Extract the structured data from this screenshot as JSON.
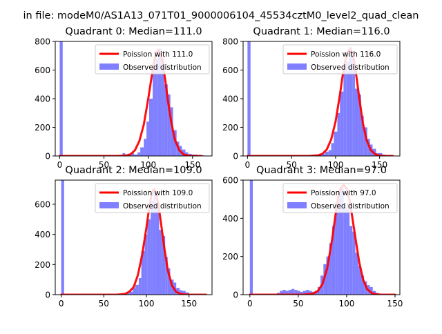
{
  "suptitle": "in file: modeM0/AS1A13_071T01_9000006104_45534cztM0_level2_quad_clean",
  "colors": {
    "hist": "#7f7fff",
    "fit": "#ff0000",
    "axis": "#000000"
  },
  "chart_data": [
    {
      "type": "bar",
      "title": "Quadrant 0: Median=111.0",
      "xlim": [
        -5,
        172
      ],
      "ylim": [
        0,
        800
      ],
      "xticks": [
        0,
        50,
        100,
        150
      ],
      "xtick_labels": [
        "0",
        "50",
        "100",
        "150"
      ],
      "yticks": [
        0,
        200,
        400,
        600,
        800
      ],
      "ytick_labels": [
        "0",
        "200",
        "400",
        "600",
        "800"
      ],
      "legend": {
        "placement": "top-right",
        "entries": [
          "Poission with 111.0",
          "Observed distribution"
        ]
      },
      "poisson_mean": 111.0,
      "bins": [
        {
          "x0": 0,
          "x1": 3.4,
          "y": 800
        },
        {
          "x0": 3.4,
          "x1": 71,
          "y": 5
        },
        {
          "x0": 71,
          "x1": 74,
          "y": 20
        },
        {
          "x0": 74,
          "x1": 77,
          "y": 5
        },
        {
          "x0": 77,
          "x1": 81,
          "y": 5
        },
        {
          "x0": 81,
          "x1": 84,
          "y": 20
        },
        {
          "x0": 84,
          "x1": 88,
          "y": 10
        },
        {
          "x0": 88,
          "x1": 91,
          "y": 25
        },
        {
          "x0": 91,
          "x1": 95,
          "y": 60
        },
        {
          "x0": 95,
          "x1": 98,
          "y": 120
        },
        {
          "x0": 98,
          "x1": 101,
          "y": 240
        },
        {
          "x0": 101,
          "x1": 105,
          "y": 400
        },
        {
          "x0": 105,
          "x1": 108,
          "y": 620
        },
        {
          "x0": 108,
          "x1": 111,
          "y": 680
        },
        {
          "x0": 111,
          "x1": 115,
          "y": 750
        },
        {
          "x0": 115,
          "x1": 118,
          "y": 690
        },
        {
          "x0": 118,
          "x1": 122,
          "y": 500
        },
        {
          "x0": 122,
          "x1": 125,
          "y": 430
        },
        {
          "x0": 125,
          "x1": 128,
          "y": 340
        },
        {
          "x0": 128,
          "x1": 132,
          "y": 180
        },
        {
          "x0": 132,
          "x1": 135,
          "y": 100
        },
        {
          "x0": 135,
          "x1": 138,
          "y": 70
        },
        {
          "x0": 138,
          "x1": 142,
          "y": 45
        },
        {
          "x0": 142,
          "x1": 145,
          "y": 25
        },
        {
          "x0": 145,
          "x1": 149,
          "y": 15
        },
        {
          "x0": 149,
          "x1": 152,
          "y": 10
        },
        {
          "x0": 152,
          "x1": 155,
          "y": 10
        },
        {
          "x0": 155,
          "x1": 159,
          "y": 5
        },
        {
          "x0": 159,
          "x1": 163,
          "y": 5
        }
      ],
      "curve": {
        "x": [
          0,
          65,
          75,
          80,
          85,
          90,
          95,
          100,
          103,
          106,
          109,
          111,
          113,
          116,
          119,
          122,
          126,
          130,
          135,
          140,
          145,
          150,
          160
        ],
        "y": [
          0,
          0,
          3,
          12,
          40,
          105,
          220,
          400,
          520,
          640,
          720,
          740,
          725,
          660,
          540,
          395,
          235,
          115,
          40,
          10,
          3,
          0,
          0
        ]
      }
    },
    {
      "type": "bar",
      "title": "Quadrant 1: Median=116.0",
      "xlim": [
        -5,
        173
      ],
      "ylim": [
        0,
        800
      ],
      "xticks": [
        0,
        50,
        100,
        150
      ],
      "xtick_labels": [
        "0",
        "50",
        "100",
        "150"
      ],
      "yticks": [
        0,
        200,
        400,
        600,
        800
      ],
      "ytick_labels": [
        "0",
        "200",
        "400",
        "600",
        "800"
      ],
      "legend": {
        "placement": "top-right",
        "entries": [
          "Poission with 116.0",
          "Observed distribution"
        ]
      },
      "poisson_mean": 116.0,
      "bins": [
        {
          "x0": 0,
          "x1": 3.4,
          "y": 800
        },
        {
          "x0": 3.4,
          "x1": 73,
          "y": 5
        },
        {
          "x0": 73,
          "x1": 80,
          "y": 5
        },
        {
          "x0": 80,
          "x1": 84,
          "y": 10
        },
        {
          "x0": 84,
          "x1": 88,
          "y": 15
        },
        {
          "x0": 88,
          "x1": 92,
          "y": 30
        },
        {
          "x0": 92,
          "x1": 95,
          "y": 40
        },
        {
          "x0": 95,
          "x1": 98,
          "y": 90
        },
        {
          "x0": 98,
          "x1": 102,
          "y": 170
        },
        {
          "x0": 102,
          "x1": 105,
          "y": 300
        },
        {
          "x0": 105,
          "x1": 109,
          "y": 450
        },
        {
          "x0": 109,
          "x1": 112,
          "y": 620
        },
        {
          "x0": 112,
          "x1": 115,
          "y": 660
        },
        {
          "x0": 115,
          "x1": 119,
          "y": 760
        },
        {
          "x0": 119,
          "x1": 122,
          "y": 680
        },
        {
          "x0": 122,
          "x1": 126,
          "y": 470
        },
        {
          "x0": 126,
          "x1": 129,
          "y": 430
        },
        {
          "x0": 129,
          "x1": 132,
          "y": 280
        },
        {
          "x0": 132,
          "x1": 136,
          "y": 200
        },
        {
          "x0": 136,
          "x1": 139,
          "y": 120
        },
        {
          "x0": 139,
          "x1": 142,
          "y": 80
        },
        {
          "x0": 142,
          "x1": 146,
          "y": 50
        },
        {
          "x0": 146,
          "x1": 149,
          "y": 20
        },
        {
          "x0": 149,
          "x1": 153,
          "y": 20
        },
        {
          "x0": 153,
          "x1": 156,
          "y": 10
        },
        {
          "x0": 156,
          "x1": 160,
          "y": 5
        },
        {
          "x0": 160,
          "x1": 163,
          "y": 5
        }
      ],
      "curve": {
        "x": [
          0,
          70,
          80,
          85,
          90,
          95,
          100,
          105,
          108,
          111,
          114,
          116,
          118,
          121,
          124,
          127,
          131,
          135,
          140,
          145,
          150,
          155,
          165
        ],
        "y": [
          0,
          0,
          4,
          15,
          45,
          115,
          240,
          430,
          560,
          665,
          730,
          745,
          730,
          665,
          540,
          400,
          230,
          115,
          40,
          12,
          3,
          0,
          0
        ]
      }
    },
    {
      "type": "bar",
      "title": "Quadrant 2: Median=109.0",
      "xlim": [
        -7,
        177
      ],
      "ylim": [
        0,
        760
      ],
      "xticks": [
        0,
        50,
        100,
        150
      ],
      "xtick_labels": [
        "0",
        "50",
        "100",
        "150"
      ],
      "yticks": [
        0,
        200,
        400,
        600
      ],
      "ytick_labels": [
        "0",
        "200",
        "400",
        "600"
      ],
      "legend": {
        "placement": "top-right",
        "entries": [
          "Poission with 109.0",
          "Observed distribution"
        ]
      },
      "poisson_mean": 109.0,
      "bins": [
        {
          "x0": 0,
          "x1": 3.4,
          "y": 760
        },
        {
          "x0": 3.4,
          "x1": 77,
          "y": 5
        },
        {
          "x0": 77,
          "x1": 80,
          "y": 10
        },
        {
          "x0": 80,
          "x1": 84,
          "y": 20
        },
        {
          "x0": 84,
          "x1": 87,
          "y": 45
        },
        {
          "x0": 87,
          "x1": 91,
          "y": 65
        },
        {
          "x0": 91,
          "x1": 94,
          "y": 110
        },
        {
          "x0": 94,
          "x1": 98,
          "y": 290
        },
        {
          "x0": 98,
          "x1": 101,
          "y": 400
        },
        {
          "x0": 101,
          "x1": 105,
          "y": 500
        },
        {
          "x0": 105,
          "x1": 108,
          "y": 620
        },
        {
          "x0": 108,
          "x1": 111,
          "y": 700
        },
        {
          "x0": 111,
          "x1": 115,
          "y": 570
        },
        {
          "x0": 115,
          "x1": 118,
          "y": 430
        },
        {
          "x0": 118,
          "x1": 122,
          "y": 390
        },
        {
          "x0": 122,
          "x1": 125,
          "y": 250
        },
        {
          "x0": 125,
          "x1": 128,
          "y": 175
        },
        {
          "x0": 128,
          "x1": 132,
          "y": 100
        },
        {
          "x0": 132,
          "x1": 135,
          "y": 80
        },
        {
          "x0": 135,
          "x1": 139,
          "y": 45
        },
        {
          "x0": 139,
          "x1": 142,
          "y": 30
        },
        {
          "x0": 142,
          "x1": 146,
          "y": 25
        },
        {
          "x0": 146,
          "x1": 150,
          "y": 15
        },
        {
          "x0": 150,
          "x1": 160,
          "y": 5
        }
      ],
      "curve": {
        "x": [
          0,
          65,
          75,
          80,
          85,
          90,
          95,
          100,
          103,
          106,
          108,
          109,
          111,
          114,
          117,
          121,
          125,
          130,
          135,
          140,
          145,
          150,
          170
        ],
        "y": [
          0,
          0,
          5,
          20,
          50,
          130,
          265,
          445,
          565,
          665,
          695,
          700,
          680,
          600,
          480,
          310,
          165,
          60,
          18,
          5,
          2,
          0,
          0
        ]
      }
    },
    {
      "type": "bar",
      "title": "Quadrant 3: Median=97.0",
      "xlim": [
        -7,
        155
      ],
      "ylim": [
        0,
        600
      ],
      "xticks": [
        0,
        50,
        100,
        150
      ],
      "xtick_labels": [
        "0",
        "50",
        "100",
        "150"
      ],
      "yticks": [
        0,
        200,
        400,
        600
      ],
      "ytick_labels": [
        "0",
        "200",
        "400",
        "600"
      ],
      "legend": {
        "placement": "top-right",
        "entries": [
          "Poission with 97.0",
          "Observed distribution"
        ]
      },
      "poisson_mean": 97.0,
      "bins": [
        {
          "x0": 0,
          "x1": 3,
          "y": 600
        },
        {
          "x0": 3,
          "x1": 28,
          "y": 5
        },
        {
          "x0": 28,
          "x1": 31,
          "y": 10
        },
        {
          "x0": 31,
          "x1": 34,
          "y": 20
        },
        {
          "x0": 34,
          "x1": 37,
          "y": 25
        },
        {
          "x0": 37,
          "x1": 40,
          "y": 20
        },
        {
          "x0": 40,
          "x1": 43,
          "y": 25
        },
        {
          "x0": 43,
          "x1": 46,
          "y": 30
        },
        {
          "x0": 46,
          "x1": 49,
          "y": 25
        },
        {
          "x0": 49,
          "x1": 52,
          "y": 20
        },
        {
          "x0": 52,
          "x1": 55,
          "y": 15
        },
        {
          "x0": 55,
          "x1": 58,
          "y": 20
        },
        {
          "x0": 58,
          "x1": 61,
          "y": 25
        },
        {
          "x0": 61,
          "x1": 64,
          "y": 20
        },
        {
          "x0": 64,
          "x1": 67,
          "y": 15
        },
        {
          "x0": 67,
          "x1": 70,
          "y": 20
        },
        {
          "x0": 70,
          "x1": 73,
          "y": 40
        },
        {
          "x0": 73,
          "x1": 76,
          "y": 100
        },
        {
          "x0": 76,
          "x1": 79,
          "y": 160
        },
        {
          "x0": 79,
          "x1": 82,
          "y": 200
        },
        {
          "x0": 82,
          "x1": 85,
          "y": 270
        },
        {
          "x0": 85,
          "x1": 88,
          "y": 360
        },
        {
          "x0": 88,
          "x1": 91,
          "y": 480
        },
        {
          "x0": 91,
          "x1": 94,
          "y": 520
        },
        {
          "x0": 94,
          "x1": 97,
          "y": 560
        },
        {
          "x0": 97,
          "x1": 100,
          "y": 450
        },
        {
          "x0": 100,
          "x1": 103,
          "y": 480
        },
        {
          "x0": 103,
          "x1": 106,
          "y": 360
        },
        {
          "x0": 106,
          "x1": 109,
          "y": 330
        },
        {
          "x0": 109,
          "x1": 112,
          "y": 220
        },
        {
          "x0": 112,
          "x1": 115,
          "y": 150
        },
        {
          "x0": 115,
          "x1": 118,
          "y": 100
        },
        {
          "x0": 118,
          "x1": 121,
          "y": 70
        },
        {
          "x0": 121,
          "x1": 124,
          "y": 50
        },
        {
          "x0": 124,
          "x1": 127,
          "y": 40
        },
        {
          "x0": 127,
          "x1": 130,
          "y": 20
        },
        {
          "x0": 130,
          "x1": 133,
          "y": 10
        },
        {
          "x0": 133,
          "x1": 136,
          "y": 5
        }
      ],
      "curve": {
        "x": [
          0,
          55,
          65,
          70,
          75,
          80,
          85,
          88,
          91,
          94,
          97,
          100,
          103,
          106,
          109,
          113,
          117,
          121,
          126,
          131,
          136,
          141,
          150
        ],
        "y": [
          0,
          0,
          5,
          18,
          55,
          140,
          290,
          400,
          505,
          560,
          575,
          555,
          495,
          400,
          300,
          170,
          80,
          30,
          8,
          2,
          0,
          0,
          0
        ]
      }
    }
  ]
}
